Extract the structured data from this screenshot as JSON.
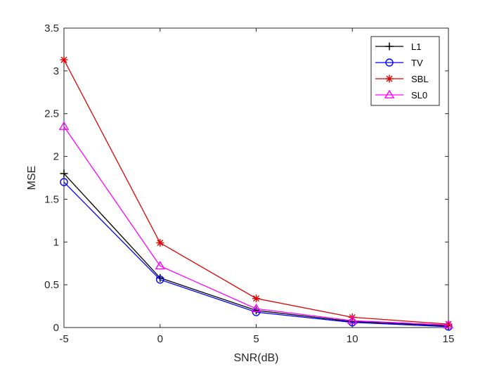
{
  "chart_data": {
    "type": "line",
    "title": "",
    "xlabel": "SNR(dB)",
    "ylabel": "MSE",
    "x": [
      -5,
      0,
      5,
      10,
      15
    ],
    "xlim": [
      -5,
      15
    ],
    "ylim": [
      0,
      3.5
    ],
    "xticks": [
      -5,
      0,
      5,
      10,
      15
    ],
    "yticks": [
      0,
      0.5,
      1,
      1.5,
      2,
      2.5,
      3,
      3.5
    ],
    "grid": false,
    "legend_position": "top-right",
    "series": [
      {
        "name": "L1",
        "color": "#000000",
        "marker": "plus",
        "values": [
          1.8,
          0.58,
          0.2,
          0.07,
          0.02
        ]
      },
      {
        "name": "TV",
        "color": "#0000ff",
        "marker": "circle",
        "values": [
          1.7,
          0.56,
          0.18,
          0.06,
          0.01
        ]
      },
      {
        "name": "SBL",
        "color": "#dd0000",
        "marker": "asterisk",
        "values": [
          3.13,
          0.99,
          0.34,
          0.12,
          0.04
        ]
      },
      {
        "name": "SL0",
        "color": "#ff00ff",
        "marker": "triangle",
        "values": [
          2.35,
          0.72,
          0.22,
          0.08,
          0.03
        ]
      }
    ]
  }
}
